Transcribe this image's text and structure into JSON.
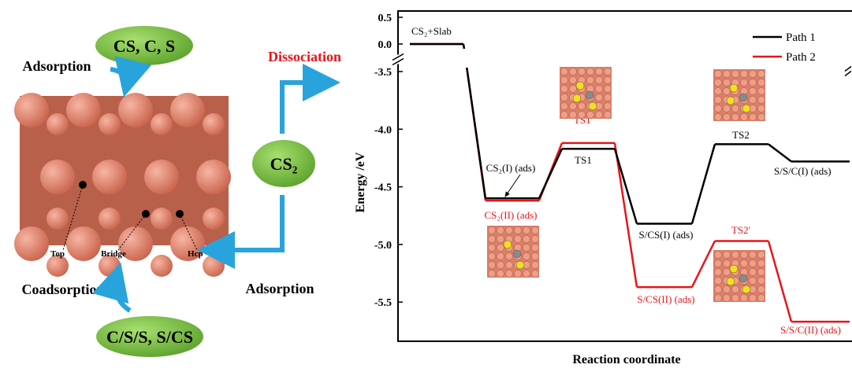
{
  "diagram": {
    "top_products": "CS, C, S",
    "adsorption_top": "Adsorption",
    "coadsorption": "Coadsorption",
    "bottom_products": "C/S/S, S/CS",
    "site_top": "Top",
    "site_bridge": "Bridge",
    "site_hcp": "Hcp",
    "molecule": "CS₂",
    "dissociation": "Dissociation",
    "adsorption_right": "Adsorption"
  },
  "chart_data": {
    "type": "line",
    "ylabel": "Energy /eV",
    "xlabel": "Reaction coordinate",
    "ylim": [
      -5.84,
      0.5
    ],
    "ybreak": [
      0,
      -3.5
    ],
    "yticks": [
      0.5,
      {
        "value": 0,
        "label": "0.0"
      },
      -3.5,
      {
        "value": -4,
        "label": "-4.0"
      },
      -4.5,
      {
        "value": -5,
        "label": "-5.0"
      },
      -5.5
    ],
    "legend": "upper right",
    "series": [
      {
        "name": "Path 1",
        "color": "#000000",
        "values": [
          0,
          -4.6,
          -4.17,
          -4.82,
          -4.13,
          -4.28
        ],
        "labels": [
          "CS₂+Slab",
          "CS₂(I) (ads)",
          "TS1",
          "S/CS(I) (ads)",
          "TS2",
          "S/S/C(I) (ads)"
        ]
      },
      {
        "name": "Path 2",
        "color": "#e8141a",
        "values": [
          0,
          -4.62,
          -4.12,
          -5.37,
          -4.97,
          -5.67
        ],
        "labels": [
          null,
          "CS₂(II) (ads)",
          "TS1'",
          "S/CS(II) (ads)",
          "TS2'",
          "S/S/C(II) (ads)"
        ]
      }
    ]
  }
}
